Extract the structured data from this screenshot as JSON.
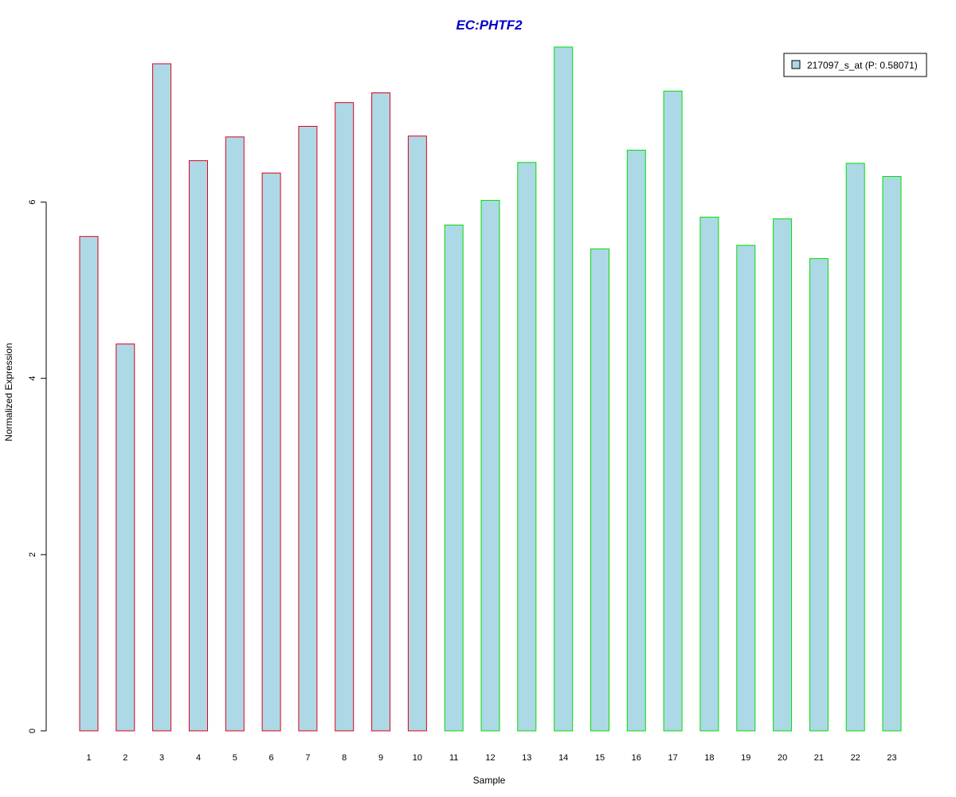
{
  "chart_data": {
    "type": "bar",
    "title": "EC:PHTF2",
    "xlabel": "Sample",
    "ylabel": "Normalized Expression",
    "categories": [
      "1",
      "2",
      "3",
      "4",
      "5",
      "6",
      "7",
      "8",
      "9",
      "10",
      "11",
      "12",
      "13",
      "14",
      "15",
      "16",
      "17",
      "18",
      "19",
      "20",
      "21",
      "22",
      "23"
    ],
    "series": [
      {
        "name": "217097_s_at (P: 0.58071)",
        "values": [
          5.61,
          4.39,
          7.57,
          6.47,
          6.74,
          6.33,
          6.86,
          7.13,
          7.24,
          6.75,
          5.74,
          6.02,
          6.45,
          7.76,
          5.47,
          6.59,
          7.26,
          5.83,
          5.51,
          5.81,
          5.36,
          6.44,
          6.29
        ]
      }
    ],
    "group_colors": [
      "#e0001b",
      "#e0001b",
      "#e0001b",
      "#e0001b",
      "#e0001b",
      "#e0001b",
      "#e0001b",
      "#e0001b",
      "#e0001b",
      "#e0001b",
      "#00dd00",
      "#00dd00",
      "#00dd00",
      "#00dd00",
      "#00dd00",
      "#00dd00",
      "#00dd00",
      "#00dd00",
      "#00dd00",
      "#00dd00",
      "#00dd00",
      "#00dd00",
      "#00dd00"
    ],
    "yticks": [
      "0",
      "2",
      "4",
      "6"
    ],
    "ylim": [
      0,
      7.76
    ],
    "bar_fill": "#add8e6",
    "title_color": "#0000cd",
    "legend_position": "top-right",
    "grid": false
  }
}
